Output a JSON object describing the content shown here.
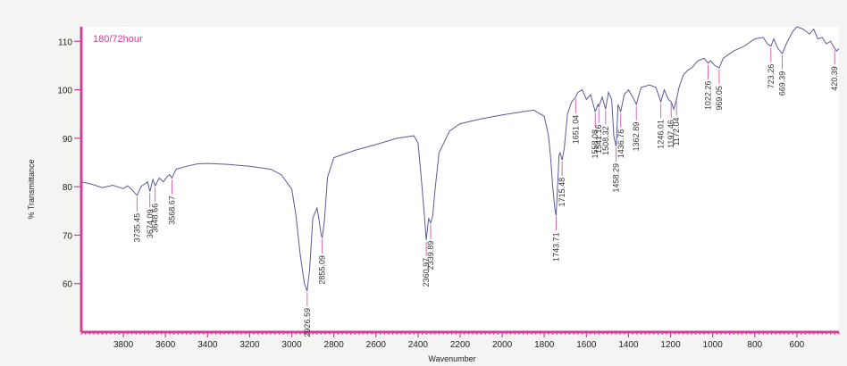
{
  "chart_data": {
    "type": "line",
    "sample_label": "180/72hour",
    "xlabel": "Wavenumber",
    "ylabel": "% Transmittance",
    "xlim": [
      4000,
      400
    ],
    "ylim": [
      50,
      113
    ],
    "x_reversed": true,
    "grid": false,
    "legend": "none",
    "x_ticks": [
      3800,
      3600,
      3400,
      3200,
      3000,
      2800,
      2600,
      2400,
      2200,
      2000,
      1800,
      1600,
      1400,
      1200,
      1000,
      800,
      600
    ],
    "y_ticks": [
      60,
      70,
      80,
      90,
      100,
      110
    ],
    "series": [
      {
        "x": [
          4000,
          3950,
          3900,
          3850,
          3800,
          3780,
          3760,
          3735,
          3715,
          3700,
          3685,
          3674,
          3660,
          3649,
          3630,
          3610,
          3590,
          3580,
          3569,
          3550,
          3500,
          3450,
          3400,
          3300,
          3200,
          3100,
          3050,
          3000,
          2980,
          2960,
          2940,
          2927,
          2915,
          2900,
          2880,
          2870,
          2860,
          2855,
          2845,
          2830,
          2800,
          2700,
          2600,
          2500,
          2420,
          2400,
          2385,
          2370,
          2361,
          2350,
          2340,
          2330,
          2320,
          2300,
          2250,
          2200,
          2100,
          2000,
          1900,
          1850,
          1800,
          1780,
          1770,
          1760,
          1750,
          1744,
          1738,
          1730,
          1725,
          1715,
          1705,
          1690,
          1670,
          1651,
          1640,
          1620,
          1600,
          1580,
          1558,
          1545,
          1541,
          1525,
          1509,
          1495,
          1480,
          1470,
          1460,
          1458,
          1450,
          1437,
          1420,
          1400,
          1380,
          1363,
          1340,
          1300,
          1270,
          1246,
          1230,
          1210,
          1197,
          1185,
          1172,
          1160,
          1140,
          1120,
          1100,
          1070,
          1040,
          1022,
          1010,
          990,
          969,
          950,
          900,
          850,
          800,
          760,
          740,
          723,
          710,
          690,
          669,
          650,
          620,
          600,
          570,
          540,
          520,
          500,
          480,
          460,
          440,
          420,
          410,
          400
        ],
        "y": [
          81,
          80.5,
          79.8,
          80.3,
          79.6,
          80.2,
          79.4,
          78.2,
          80.1,
          80.5,
          81,
          79,
          81.5,
          80.2,
          81.8,
          81,
          82.2,
          82.5,
          81.8,
          83.6,
          84.2,
          84.7,
          84.8,
          84.6,
          84.2,
          83.6,
          82.5,
          79.5,
          74,
          66,
          60,
          58.5,
          63,
          73.5,
          75.6,
          73,
          70,
          69.5,
          73,
          82,
          86,
          87.5,
          88.7,
          90,
          90.5,
          89,
          82,
          74,
          69,
          73.5,
          72.5,
          74,
          79,
          87,
          91.5,
          93,
          94,
          94.8,
          95.5,
          95.8,
          94.5,
          90.5,
          86,
          80,
          75.5,
          74,
          79,
          86.5,
          87,
          85.5,
          88,
          95,
          97.5,
          98.5,
          99.5,
          100,
          98,
          99,
          95.5,
          97,
          96.5,
          98.5,
          96,
          99.5,
          98,
          90.5,
          88.5,
          88.5,
          97,
          95.5,
          99,
          100,
          98.5,
          97,
          100.5,
          101,
          100.5,
          97.5,
          100,
          98,
          97.5,
          96,
          98,
          100.5,
          103,
          104,
          104.5,
          106,
          106.5,
          105.5,
          106,
          105,
          104.5,
          106.5,
          108,
          109,
          110.5,
          110.8,
          109.5,
          109,
          110.5,
          108.5,
          107.5,
          109.5,
          112,
          113,
          112.5,
          111.5,
          112.5,
          110.5,
          110.8,
          109.5,
          110,
          108.5,
          108,
          108.5
        ],
        "color": "#5a5a9a"
      }
    ],
    "peaks": [
      "3735.45",
      "3674.09",
      "3648.66",
      "3568.67",
      "2926.59",
      "2855.09",
      "2360.97",
      "2339.89",
      "1743.71",
      "1715.48",
      "1651.04",
      "1558.08",
      "1541.16",
      "1508.32",
      "1458.29",
      "1436.76",
      "1362.89",
      "1246.01",
      "1197.46",
      "1172.04",
      "1022.26",
      "969.05",
      "723.26",
      "669.39",
      "420.39"
    ],
    "colors": {
      "line": "#5a5a9a",
      "axis": "#d0409a",
      "label_tick": "#d0409a",
      "sample_label": "#d0409a"
    }
  }
}
